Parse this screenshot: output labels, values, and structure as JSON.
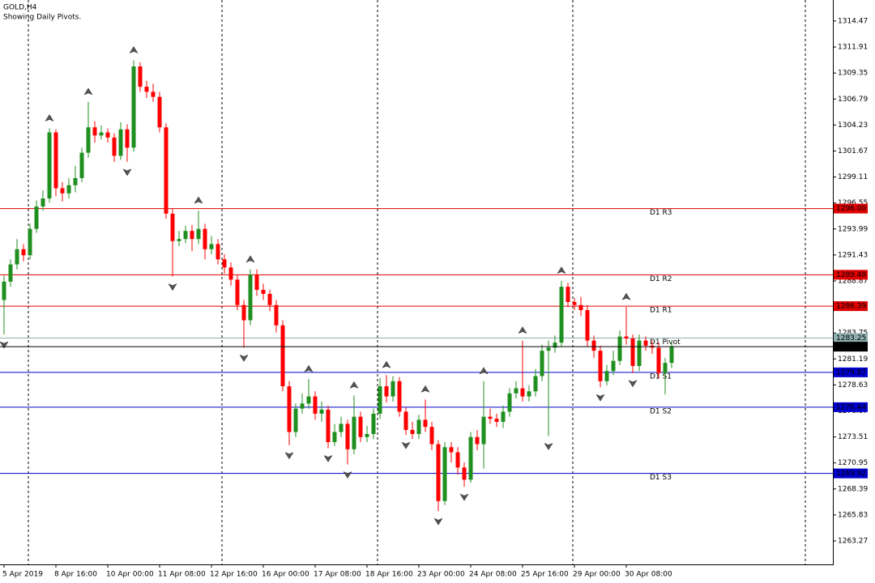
{
  "chart_data": {
    "type": "candlestick",
    "title": "GOLD,H4",
    "subtitle": "Showing Daily Pivots.",
    "categories": [
      "5 Apr 2019",
      null,
      null,
      null,
      null,
      null,
      null,
      null,
      "8 Apr 16:00",
      null,
      null,
      null,
      null,
      null,
      null,
      null,
      "10 Apr 00:00",
      null,
      null,
      null,
      null,
      null,
      null,
      null,
      "11 Apr 08:00",
      null,
      null,
      null,
      null,
      null,
      null,
      null,
      "12 Apr 16:00",
      null,
      null,
      null,
      null,
      null,
      null,
      null,
      "16 Apr 00:00",
      null,
      null,
      null,
      null,
      null,
      null,
      null,
      "17 Apr 08:00",
      null,
      null,
      null,
      null,
      null,
      null,
      null,
      "18 Apr 16:00",
      null,
      null,
      null,
      null,
      null,
      null,
      null,
      "23 Apr 00:00",
      null,
      null,
      null,
      null,
      null,
      null,
      null,
      "24 Apr 08:00",
      null,
      null,
      null,
      null,
      null,
      null,
      null,
      "25 Apr 16:00",
      null,
      null,
      null,
      null,
      null,
      null,
      null,
      "29 Apr 00:00",
      null,
      null,
      null,
      null,
      null,
      null,
      null,
      "30 Apr 08:00",
      null,
      null,
      null,
      null,
      null,
      null,
      null
    ],
    "open": [
      1287.0,
      1288.8,
      1290.5,
      1292.0,
      1291.4,
      1294.0,
      1296.2,
      1297.0,
      1303.5,
      1298.0,
      1297.5,
      1298.3,
      1299.0,
      1301.5,
      1304.0,
      1303.2,
      1303.5,
      1303.0,
      1301.2,
      1303.8,
      1302.0,
      1310.0,
      1308.0,
      1307.5,
      1307.0,
      1304.0,
      1295.5,
      1292.8,
      1293.0,
      1293.8,
      1293.0,
      1294.0,
      1292.0,
      1292.5,
      1291.0,
      1290.2,
      1289.0,
      1286.5,
      1285.0,
      1289.5,
      1288.0,
      1287.6,
      1286.5,
      1284.5,
      1278.5,
      1274.0,
      1276.3,
      1276.8,
      1277.5,
      1275.8,
      1276.2,
      1273.0,
      1274.0,
      1274.8,
      1272.3,
      1275.5,
      1273.5,
      1273.8,
      1275.8,
      1278.5,
      1277.5,
      1279.0,
      1276.0,
      1274.2,
      1273.8,
      1275.2,
      1274.5,
      1272.8,
      1267.2,
      1272.5,
      1272.0,
      1270.5,
      1269.3,
      1273.5,
      1272.8,
      1275.5,
      1275.3,
      1275.0,
      1276.0,
      1277.8,
      1278.3,
      1277.5,
      1278.0,
      1279.5,
      1282.0,
      1282.3,
      1282.8,
      1288.3,
      1286.8,
      1286.5,
      1286.0,
      1283.0,
      1282.0,
      1279.0,
      1280.0,
      1281.0,
      1283.4,
      1283.2,
      1280.5,
      1283.0,
      1282.5,
      1282.3,
      1279.8,
      1280.8
    ],
    "high": [
      1289.4,
      1291.0,
      1293.0,
      1292.5,
      1294.5,
      1296.8,
      1297.8,
      1303.9,
      1303.8,
      1298.6,
      1299.0,
      1300.2,
      1302.0,
      1306.5,
      1304.6,
      1304.2,
      1303.9,
      1303.4,
      1304.5,
      1304.3,
      1310.6,
      1310.4,
      1308.6,
      1308.3,
      1307.5,
      1304.4,
      1296.0,
      1293.8,
      1294.3,
      1294.4,
      1295.8,
      1294.5,
      1293.3,
      1293.0,
      1291.5,
      1290.7,
      1289.5,
      1287.0,
      1290.0,
      1290.0,
      1288.6,
      1288.0,
      1287.0,
      1285.0,
      1279.0,
      1276.8,
      1277.8,
      1279.2,
      1278.0,
      1277.0,
      1276.6,
      1274.8,
      1275.5,
      1275.2,
      1277.6,
      1276.0,
      1274.6,
      1276.3,
      1279.3,
      1279.6,
      1279.5,
      1279.4,
      1276.4,
      1275.0,
      1275.7,
      1277.2,
      1275.0,
      1273.2,
      1273.0,
      1273.0,
      1272.5,
      1271.0,
      1274.0,
      1274.2,
      1279.0,
      1276.3,
      1275.8,
      1276.6,
      1278.3,
      1279.0,
      1283.0,
      1278.6,
      1280.2,
      1282.6,
      1283.0,
      1283.5,
      1288.9,
      1288.7,
      1287.2,
      1287.3,
      1286.5,
      1283.5,
      1282.5,
      1280.6,
      1282.0,
      1284.0,
      1286.3,
      1283.6,
      1283.6,
      1283.4,
      1283.0,
      1282.8,
      1281.3,
      1282.9
    ],
    "low": [
      1283.6,
      1288.3,
      1290.0,
      1290.8,
      1291.0,
      1293.6,
      1295.8,
      1296.6,
      1297.2,
      1296.7,
      1297.0,
      1297.6,
      1298.6,
      1301.0,
      1302.5,
      1302.8,
      1302.5,
      1300.6,
      1300.8,
      1300.6,
      1301.6,
      1307.5,
      1306.9,
      1306.5,
      1303.5,
      1295.0,
      1289.3,
      1292.3,
      1292.6,
      1291.8,
      1292.5,
      1291.0,
      1291.5,
      1290.5,
      1289.6,
      1288.4,
      1286.0,
      1282.3,
      1284.5,
      1287.4,
      1287.0,
      1285.9,
      1283.8,
      1278.0,
      1272.7,
      1273.5,
      1275.8,
      1276.3,
      1275.2,
      1275.0,
      1272.4,
      1272.6,
      1273.5,
      1270.8,
      1271.8,
      1273.0,
      1273.0,
      1273.3,
      1275.3,
      1276.9,
      1277.0,
      1275.5,
      1273.7,
      1273.3,
      1273.3,
      1274.0,
      1272.2,
      1266.2,
      1266.8,
      1271.0,
      1269.8,
      1268.6,
      1269.0,
      1272.2,
      1270.4,
      1274.8,
      1274.5,
      1274.4,
      1275.5,
      1277.3,
      1277.0,
      1277.0,
      1277.5,
      1279.0,
      1273.6,
      1281.8,
      1282.4,
      1286.3,
      1286.0,
      1285.4,
      1282.4,
      1281.3,
      1278.4,
      1278.6,
      1279.6,
      1280.6,
      1282.6,
      1279.8,
      1280.0,
      1282.0,
      1281.7,
      1279.3,
      1277.7,
      1280.3
    ],
    "close": [
      1288.8,
      1290.5,
      1292.0,
      1291.4,
      1294.0,
      1296.2,
      1297.0,
      1303.5,
      1298.0,
      1297.5,
      1298.3,
      1299.0,
      1301.5,
      1304.0,
      1303.2,
      1303.5,
      1303.0,
      1301.2,
      1303.8,
      1302.0,
      1310.0,
      1308.0,
      1307.5,
      1307.0,
      1304.0,
      1295.5,
      1292.8,
      1293.0,
      1293.8,
      1293.0,
      1294.0,
      1292.0,
      1292.5,
      1291.0,
      1290.2,
      1289.0,
      1286.5,
      1285.0,
      1289.5,
      1288.0,
      1287.6,
      1286.5,
      1284.5,
      1278.5,
      1274.0,
      1276.3,
      1276.8,
      1277.5,
      1275.8,
      1276.2,
      1273.0,
      1274.0,
      1274.8,
      1272.3,
      1275.5,
      1273.5,
      1273.8,
      1275.8,
      1278.5,
      1277.5,
      1279.0,
      1276.0,
      1274.2,
      1273.8,
      1275.2,
      1274.5,
      1272.8,
      1267.2,
      1272.5,
      1272.0,
      1270.5,
      1269.3,
      1273.5,
      1272.8,
      1275.5,
      1275.3,
      1275.0,
      1276.0,
      1277.8,
      1278.3,
      1277.5,
      1278.0,
      1279.5,
      1282.0,
      1282.3,
      1282.8,
      1288.3,
      1286.8,
      1286.5,
      1286.0,
      1283.0,
      1282.0,
      1279.0,
      1280.0,
      1281.0,
      1283.4,
      1283.2,
      1280.5,
      1283.0,
      1282.5,
      1282.3,
      1279.8,
      1280.8,
      1282.4
    ],
    "up_color": "#1f8f1f",
    "down_color": "#ff0000",
    "ylim": [
      1260.96,
      1316.54
    ],
    "yticks": [
      1314.47,
      1311.91,
      1309.35,
      1306.79,
      1304.23,
      1301.67,
      1299.11,
      1296.55,
      1293.99,
      1291.43,
      1288.87,
      1286.31,
      1283.75,
      1281.19,
      1278.63,
      1276.07,
      1273.51,
      1270.95,
      1268.39,
      1265.83,
      1263.27
    ],
    "pivots": [
      {
        "name": "D1 R3",
        "value": 1296,
        "label": "1296.00",
        "color": "#e00000"
      },
      {
        "name": "D1 R2",
        "value": 1289.48,
        "label": "1289.48",
        "color": "#e00000"
      },
      {
        "name": "D1 R1",
        "value": 1286.39,
        "label": "1286.39",
        "color": "#e00000"
      },
      {
        "name": "D1 Pivot",
        "value": 1283.25,
        "label": "1283.25",
        "color": "#8fb0b0"
      },
      {
        "name": "D1 S1",
        "value": 1279.87,
        "label": "1279.87",
        "color": "#0000cd"
      },
      {
        "name": "D1 S2",
        "value": 1276.44,
        "label": "1276.44",
        "color": "#0000cd"
      },
      {
        "name": "D1 S3",
        "value": 1269.92,
        "label": "1269.92",
        "color": "#0000cd"
      }
    ],
    "last_price": {
      "value": 1282.4,
      "label": "1282.40",
      "color": "#000000"
    },
    "fractals_up": [
      7,
      13,
      20,
      30,
      38,
      47,
      54,
      59,
      65,
      74,
      80,
      86,
      96
    ],
    "fractals_down": [
      0,
      19,
      26,
      37,
      44,
      50,
      53,
      62,
      67,
      71,
      84,
      92,
      97
    ]
  }
}
